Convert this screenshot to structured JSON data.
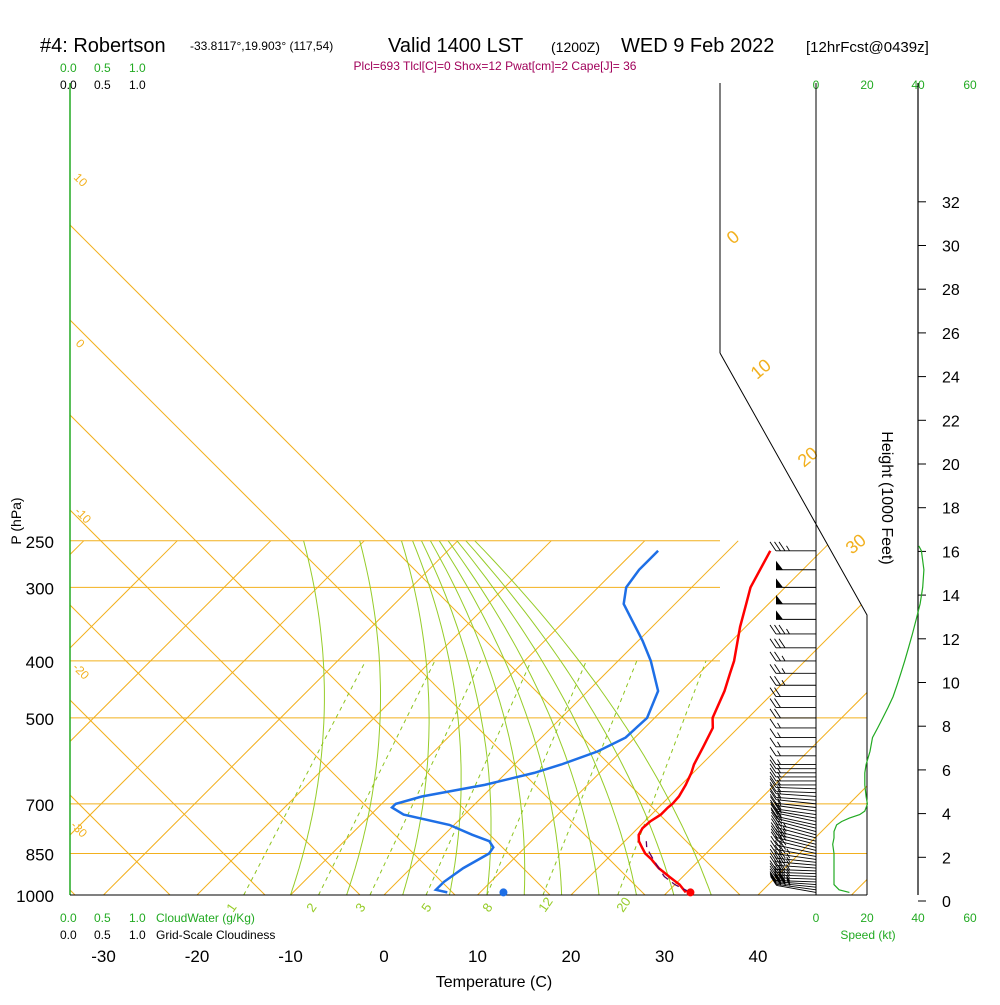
{
  "header": {
    "station": "#4: Robertson",
    "coords": "-33.8117°,19.903° (117,54)",
    "valid": "Valid 1400 LST",
    "utc": "(1200Z)",
    "date": "WED 9 Feb 2022",
    "fcst": "[12hrFcst@0439z]"
  },
  "indices": "Plcl=693 Tlcl[C]=0 Shox=12 Pwat[cm]=2 Cape[J]= 36",
  "colors": {
    "temp": "#ff0000",
    "dew": "#1e6fe6",
    "isotherm": "#f2b01e",
    "dry_adiabat": "#f2b01e",
    "moist_adiabat": "#96cc28",
    "mixing_ratio": "#8ec41e",
    "green_text": "#22aa22",
    "indices_text": "#a0005a",
    "parcel": "#600060",
    "wind": "#000000"
  },
  "cloud_scale": {
    "top_green": [
      "0.0",
      "0.5",
      "1.0"
    ],
    "top_black": [
      "0.0",
      "0.5",
      "1.0"
    ],
    "bottom_green": [
      "0.0",
      "0.5",
      "1.0"
    ],
    "bottom_green_label": "CloudWater (g/Kg)",
    "bottom_black": [
      "0.0",
      "0.5",
      "1.0"
    ],
    "bottom_black_label": "Grid-Scale Cloudiness"
  },
  "speed_scale": {
    "top_black": "0",
    "top_green": [
      "20",
      "40",
      "60"
    ],
    "bottom_black": [
      "0",
      "20",
      "40"
    ],
    "bottom_green": "60",
    "label": "Speed (kt)"
  },
  "axes": {
    "ylabel": "P (hPa)",
    "xlabel": "Temperature (C)",
    "pressure_ticks": [
      "250",
      "300",
      "400",
      "500",
      "700",
      "850",
      "1000"
    ],
    "temp_ticks": [
      "-30",
      "-20",
      "-10",
      "0",
      "10",
      "20",
      "30",
      "40"
    ],
    "height_label": "Height (1000 Feet)",
    "height_ticks": [
      "0",
      "2",
      "4",
      "6",
      "8",
      "10",
      "12",
      "14",
      "16",
      "18",
      "20",
      "22",
      "24",
      "26",
      "28",
      "30",
      "32"
    ]
  },
  "diagram_labels": {
    "isotherm_labels": [
      "0",
      "10",
      "20",
      "30"
    ],
    "dry_adiabat_labels": [
      "10",
      "0",
      "-10",
      "-20",
      "-30"
    ],
    "mixing_ratio_labels": [
      "1",
      "2",
      "3",
      "5",
      "8",
      "12",
      "20"
    ]
  },
  "chart_data": {
    "type": "line",
    "x_range": [
      -35,
      45
    ],
    "p_range": [
      1000,
      250
    ],
    "series": [
      {
        "key": "temperature",
        "p": [
          990,
          960,
          930,
          900,
          870,
          850,
          830,
          810,
          790,
          770,
          750,
          730,
          710,
          700,
          680,
          650,
          620,
          600,
          560,
          520,
          500,
          450,
          420,
          400,
          350,
          320,
          300,
          260
        ],
        "t": [
          32,
          30.5,
          28.5,
          26.5,
          24.8,
          23.5,
          22.5,
          21.5,
          20.8,
          20.5,
          20.6,
          21,
          21,
          21.1,
          21,
          20.5,
          19.8,
          19.2,
          18.3,
          17.3,
          16.2,
          14.6,
          13.3,
          12.4,
          9.4,
          7.6,
          6.3,
          4.5
        ]
      },
      {
        "key": "dewpoint",
        "p": [
          990,
          980,
          950,
          900,
          850,
          830,
          810,
          790,
          760,
          730,
          710,
          700,
          680,
          650,
          620,
          600,
          570,
          540,
          500,
          450,
          400,
          370,
          340,
          320,
          300,
          280,
          270,
          260
        ],
        "t": [
          6.5,
          5,
          5,
          5.6,
          6.8,
          6.6,
          5.5,
          3,
          -0.5,
          -6.5,
          -8.5,
          -8.5,
          -6.5,
          -1,
          3,
          5,
          7.5,
          9,
          9.2,
          7.5,
          3.5,
          0.5,
          -3,
          -5.5,
          -7,
          -7.5,
          -7.5,
          -7.5
        ]
      },
      {
        "key": "parcel",
        "p": [
          990,
          960,
          930,
          900,
          870,
          850,
          830,
          810
        ],
        "t": [
          32.5,
          30,
          28,
          26.5,
          25,
          24,
          23,
          22.3
        ]
      }
    ],
    "surface_points": {
      "temperature": 32.5,
      "dewpoint": 12.5,
      "p": 990
    },
    "wind_profile": {
      "p": [
        990,
        980,
        970,
        960,
        950,
        940,
        930,
        920,
        910,
        900,
        890,
        880,
        870,
        860,
        850,
        840,
        830,
        820,
        810,
        800,
        790,
        780,
        770,
        760,
        750,
        740,
        730,
        720,
        710,
        700,
        690,
        680,
        670,
        660,
        650,
        640,
        630,
        620,
        610,
        600,
        580,
        560,
        540,
        520,
        500,
        480,
        460,
        440,
        420,
        400,
        380,
        360,
        340,
        320,
        300,
        280,
        260
      ],
      "dir": [
        260,
        262,
        264,
        266,
        268,
        268,
        268,
        268,
        268,
        266,
        265,
        264,
        262,
        260,
        258,
        256,
        256,
        256,
        256,
        255,
        255,
        255,
        256,
        258,
        258,
        260,
        262,
        262,
        264,
        264,
        266,
        266,
        268,
        268,
        270,
        270,
        270,
        270,
        270,
        270,
        270,
        270,
        270,
        270,
        270,
        270,
        270,
        270,
        270,
        270,
        270,
        270,
        270,
        270,
        270,
        270,
        270
      ],
      "spd": [
        35,
        35,
        35,
        35,
        35,
        35,
        35,
        35,
        35,
        35,
        35,
        35,
        35,
        30,
        30,
        30,
        30,
        25,
        25,
        25,
        20,
        20,
        20,
        20,
        20,
        20,
        15,
        15,
        15,
        15,
        15,
        15,
        15,
        15,
        15,
        15,
        15,
        15,
        15,
        15,
        15,
        15,
        15,
        15,
        20,
        20,
        20,
        25,
        25,
        25,
        30,
        35,
        50,
        50,
        50,
        50,
        35
      ]
    },
    "speed_profile": {
      "p": [
        990,
        980,
        960,
        930,
        900,
        870,
        850,
        820,
        800,
        780,
        760,
        750,
        740,
        730,
        720,
        700,
        680,
        650,
        620,
        600,
        570,
        540,
        520,
        500,
        480,
        460,
        440,
        420,
        400,
        380,
        360,
        340,
        320,
        300,
        280,
        260,
        255
      ],
      "spd": [
        13,
        9,
        7,
        7,
        7,
        7,
        7,
        6.5,
        7,
        7,
        8,
        10,
        13,
        17,
        19,
        20,
        19.5,
        19,
        19,
        19.5,
        21,
        22,
        24,
        26,
        28,
        30,
        31.5,
        33,
        34.5,
        36,
        37.5,
        39,
        40.5,
        41.5,
        42,
        41,
        40
      ]
    }
  }
}
